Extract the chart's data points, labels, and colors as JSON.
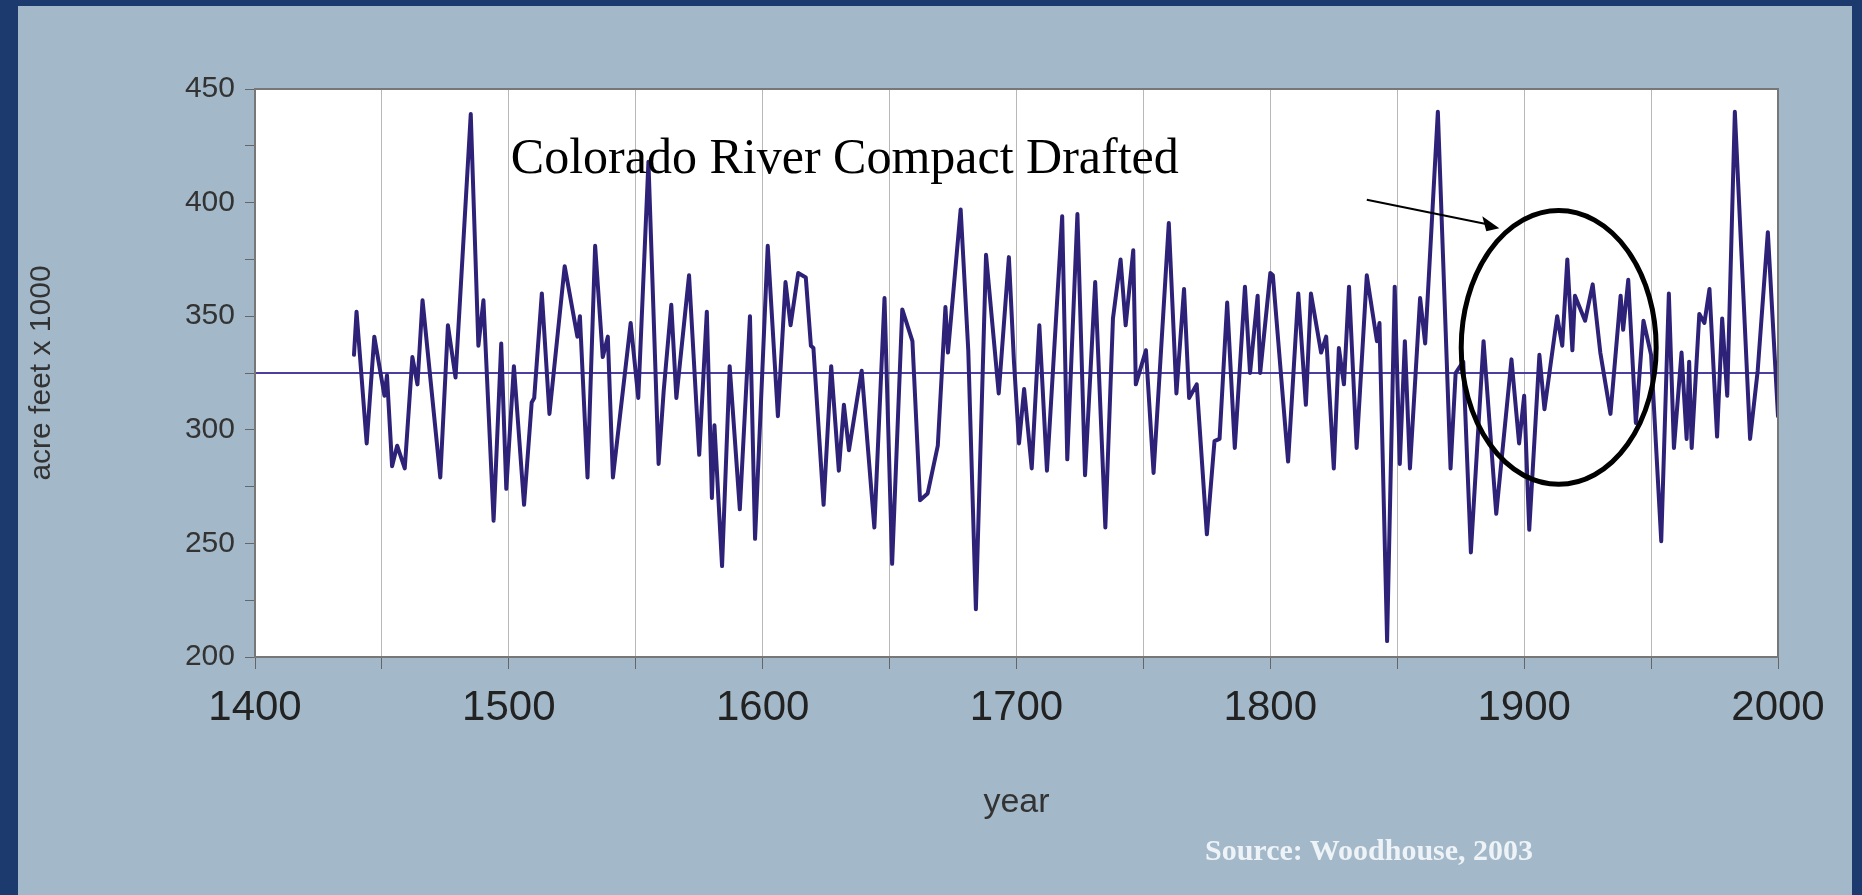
{
  "chart_data": {
    "type": "line",
    "xlabel": "year",
    "ylabel": "acre feet x 1000",
    "annotations": [
      "Colorado River Compact Drafted",
      "Source: Woodhouse, 2003"
    ],
    "xlim": [
      1400,
      2000
    ],
    "xticks": [
      1400,
      {
        "value": 1450,
        "label": null
      },
      1500,
      {
        "value": 1550,
        "label": null
      },
      1600,
      {
        "value": 1650,
        "label": null
      },
      1700,
      {
        "value": 1750,
        "label": null
      },
      1800,
      {
        "value": 1850,
        "label": null
      },
      1900,
      {
        "value": 1950,
        "label": null
      },
      2000
    ],
    "ylim": [
      200,
      450
    ],
    "yticks": [
      200,
      {
        "value": 225,
        "label": null
      },
      250,
      {
        "value": 275,
        "label": null
      },
      300,
      {
        "value": 325,
        "label": null
      },
      350,
      {
        "value": 375,
        "label": null
      },
      400,
      {
        "value": 425,
        "label": null
      },
      450
    ],
    "grid": "x",
    "legend": false,
    "marker": "none",
    "line_style": "solid",
    "ref_lines": [
      {
        "axis": "y",
        "value": 325,
        "color": "#4a3f9e"
      }
    ],
    "series": [
      {
        "color": "#2e2278",
        "x": [
          1439,
          1440,
          1444,
          1447,
          1451,
          1452,
          1454,
          1456,
          1459,
          1462,
          1464,
          1466,
          1473,
          1476,
          1479,
          1485,
          1488,
          1490,
          1494,
          1497,
          1499,
          1502,
          1506,
          1509,
          1510,
          1513,
          1516,
          1522,
          1527,
          1528,
          1531,
          1534,
          1537,
          1539,
          1541,
          1548,
          1551,
          1555,
          1559,
          1561,
          1564,
          1566,
          1571,
          1575,
          1578,
          1580,
          1581,
          1584,
          1587,
          1591,
          1595,
          1597,
          1602,
          1606,
          1609,
          1611,
          1614,
          1617,
          1619,
          1620,
          1624,
          1627,
          1630,
          1632,
          1634,
          1639,
          1644,
          1648,
          1651,
          1655,
          1659,
          1662,
          1665,
          1669,
          1672,
          1673,
          1678,
          1681,
          1684,
          1688,
          1693,
          1697,
          1699,
          1701,
          1703,
          1706,
          1709,
          1712,
          1718,
          1720,
          1724,
          1727,
          1731,
          1735,
          1738,
          1741,
          1743,
          1746,
          1747,
          1751,
          1754,
          1760,
          1763,
          1766,
          1768,
          1771,
          1775,
          1778,
          1780,
          1783,
          1786,
          1790,
          1792,
          1795,
          1796,
          1800,
          1801,
          1807,
          1811,
          1814,
          1816,
          1820,
          1822,
          1825,
          1827,
          1829,
          1831,
          1834,
          1838,
          1842,
          1843,
          1846,
          1849,
          1851,
          1853,
          1855,
          1859,
          1861,
          1866,
          1871,
          1873,
          1876,
          1879,
          1884,
          1889,
          1895,
          1898,
          1900,
          1902,
          1906,
          1908,
          1913,
          1915,
          1917,
          1919,
          1920,
          1924,
          1927,
          1930,
          1934,
          1938,
          1939,
          1941,
          1944,
          1947,
          1950,
          1954,
          1957,
          1959,
          1962,
          1964,
          1965,
          1966,
          1969,
          1971,
          1973,
          1976,
          1978,
          1980,
          1983,
          1989,
          1992,
          1996,
          2000
        ],
        "values": [
          333,
          352,
          294,
          341,
          315,
          324,
          284,
          293,
          283,
          332,
          320,
          357,
          279,
          346,
          323,
          439,
          337,
          357,
          260,
          338,
          274,
          328,
          267,
          312,
          314,
          360,
          307,
          372,
          341,
          350,
          279,
          381,
          332,
          341,
          279,
          347,
          314,
          418,
          285,
          317,
          355,
          314,
          368,
          289,
          352,
          270,
          302,
          240,
          328,
          265,
          350,
          252,
          381,
          306,
          365,
          346,
          369,
          367,
          337,
          336,
          267,
          328,
          282,
          311,
          291,
          326,
          257,
          358,
          241,
          353,
          339,
          269,
          272,
          293,
          354,
          334,
          397,
          335,
          221,
          377,
          316,
          376,
          330,
          294,
          318,
          283,
          346,
          282,
          394,
          287,
          395,
          280,
          365,
          257,
          349,
          375,
          346,
          379,
          320,
          335,
          281,
          391,
          316,
          362,
          314,
          320,
          254,
          295,
          296,
          356,
          292,
          363,
          325,
          359,
          325,
          369,
          368,
          286,
          360,
          311,
          360,
          334,
          341,
          283,
          336,
          320,
          363,
          292,
          368,
          339,
          347,
          207,
          363,
          285,
          339,
          283,
          358,
          338,
          440,
          283,
          325,
          330,
          246,
          339,
          263,
          331,
          294,
          315,
          256,
          333,
          309,
          350,
          337,
          375,
          335,
          359,
          348,
          364,
          334,
          307,
          359,
          344,
          366,
          303,
          348,
          333,
          251,
          360,
          292,
          334,
          296,
          330,
          292,
          351,
          347,
          362,
          297,
          349,
          315,
          440,
          296,
          326,
          387,
          306
        ]
      }
    ]
  }
}
